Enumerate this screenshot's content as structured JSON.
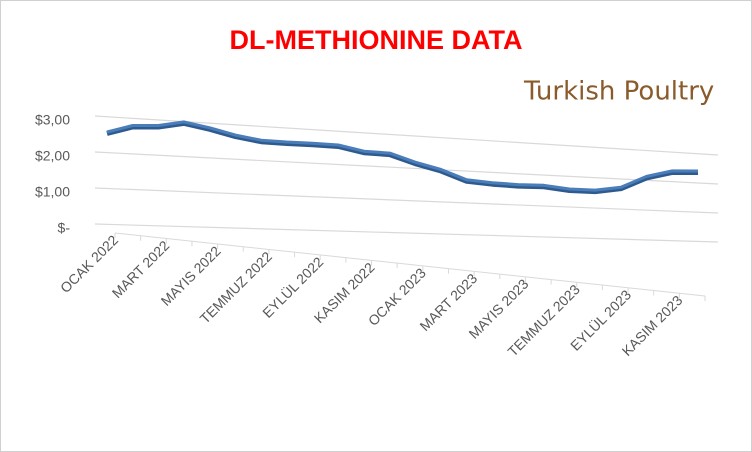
{
  "chart_data": {
    "type": "line3d",
    "title": "DL-METHIONINE DATA",
    "logo": "Turkish Poultry",
    "categories": [
      "OCAK 2022",
      null,
      "MART 2022",
      null,
      "MAYIS 2022",
      null,
      "TEMMUZ 2022",
      null,
      "EYLÜL 2022",
      null,
      "KASIM 2022",
      null,
      "OCAK 2023",
      null,
      "MART 2023",
      null,
      "MAYIS 2023",
      null,
      "TEMMUZ 2023",
      null,
      "EYLÜL 2023",
      null,
      "KASIM 2023",
      null
    ],
    "values": [
      2.6,
      2.78,
      2.78,
      2.88,
      2.72,
      2.52,
      2.38,
      2.33,
      2.3,
      2.25,
      2.08,
      2.03,
      1.78,
      1.58,
      1.3,
      1.22,
      1.17,
      1.15,
      1.05,
      1.02,
      1.1,
      1.4,
      1.55,
      1.55
    ],
    "color": "#4a7ebb",
    "ylim": [
      0,
      3
    ],
    "yticks": [
      {
        "value": 0,
        "label": "$-"
      },
      {
        "value": 1,
        "label": "$1,00"
      },
      {
        "value": 2,
        "label": "$2,00"
      },
      {
        "value": 3,
        "label": "$3,00"
      }
    ],
    "grid": true
  }
}
